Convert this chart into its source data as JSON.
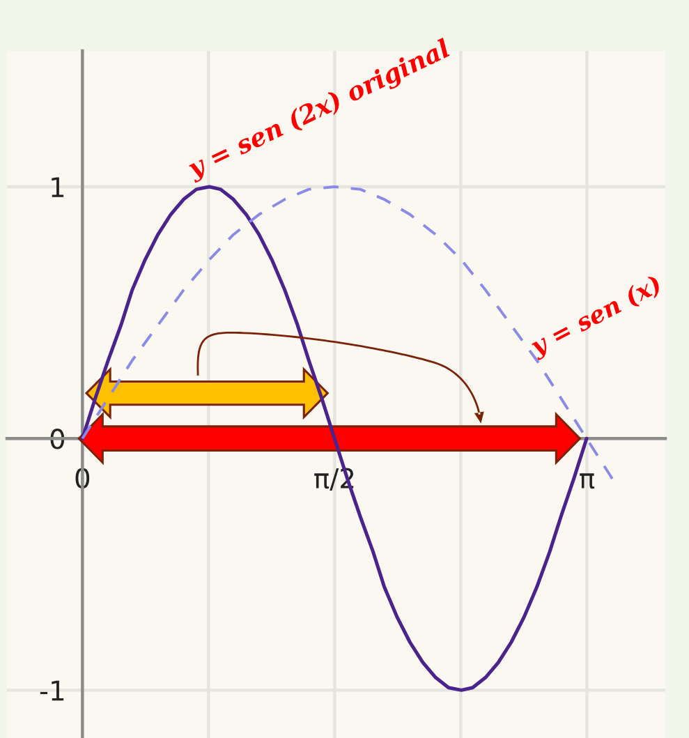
{
  "chart_data": {
    "type": "line",
    "series": [
      {
        "name": "y = sen (2x) original",
        "color": "#4b238c",
        "line_style": "solid",
        "x": [
          0,
          0.08,
          0.16,
          0.24,
          0.31,
          0.39,
          0.47,
          0.55,
          0.63,
          0.71,
          0.79,
          0.86,
          0.94,
          1.02,
          1.1,
          1.18,
          1.26,
          1.34,
          1.41,
          1.49,
          1.57,
          1.65,
          1.73,
          1.81,
          1.88,
          1.96,
          2.04,
          2.12,
          2.2,
          2.28,
          2.36,
          2.43,
          2.51,
          2.59,
          2.67,
          2.75,
          2.83,
          2.91,
          2.98,
          3.06,
          3.14
        ],
        "values": [
          0,
          0.16,
          0.31,
          0.45,
          0.59,
          0.71,
          0.81,
          0.89,
          0.95,
          0.99,
          1,
          0.99,
          0.95,
          0.89,
          0.81,
          0.71,
          0.59,
          0.45,
          0.31,
          0.16,
          0,
          -0.16,
          -0.31,
          -0.45,
          -0.59,
          -0.71,
          -0.81,
          -0.89,
          -0.95,
          -0.99,
          -1,
          -0.99,
          -0.95,
          -0.89,
          -0.81,
          -0.71,
          -0.59,
          -0.45,
          -0.31,
          -0.16,
          0
        ]
      },
      {
        "name": "y = sen (x)",
        "color": "#8a8ae8",
        "line_style": "dashed",
        "x": [
          0,
          0.16,
          0.31,
          0.47,
          0.63,
          0.79,
          0.94,
          1.1,
          1.26,
          1.41,
          1.57,
          1.73,
          1.88,
          2.04,
          2.2,
          2.36,
          2.51,
          2.67,
          2.83,
          2.98,
          3.14,
          3.3
        ],
        "values": [
          0,
          0.16,
          0.31,
          0.45,
          0.59,
          0.71,
          0.81,
          0.89,
          0.95,
          0.99,
          1,
          0.99,
          0.95,
          0.89,
          0.81,
          0.71,
          0.59,
          0.45,
          0.31,
          0.16,
          0,
          -0.16
        ]
      }
    ],
    "xlim": [
      -0.47,
      3.63
    ],
    "ylim": [
      -1.19,
      1.54
    ],
    "xticks": [
      {
        "value": 0,
        "label": "0"
      },
      {
        "value": 0.785,
        "label": null
      },
      {
        "value": 1.571,
        "label": "π/2"
      },
      {
        "value": 2.356,
        "label": null
      },
      {
        "value": 3.142,
        "label": "π"
      }
    ],
    "yticks": [
      -1,
      0,
      1
    ],
    "grid": true
  }
}
